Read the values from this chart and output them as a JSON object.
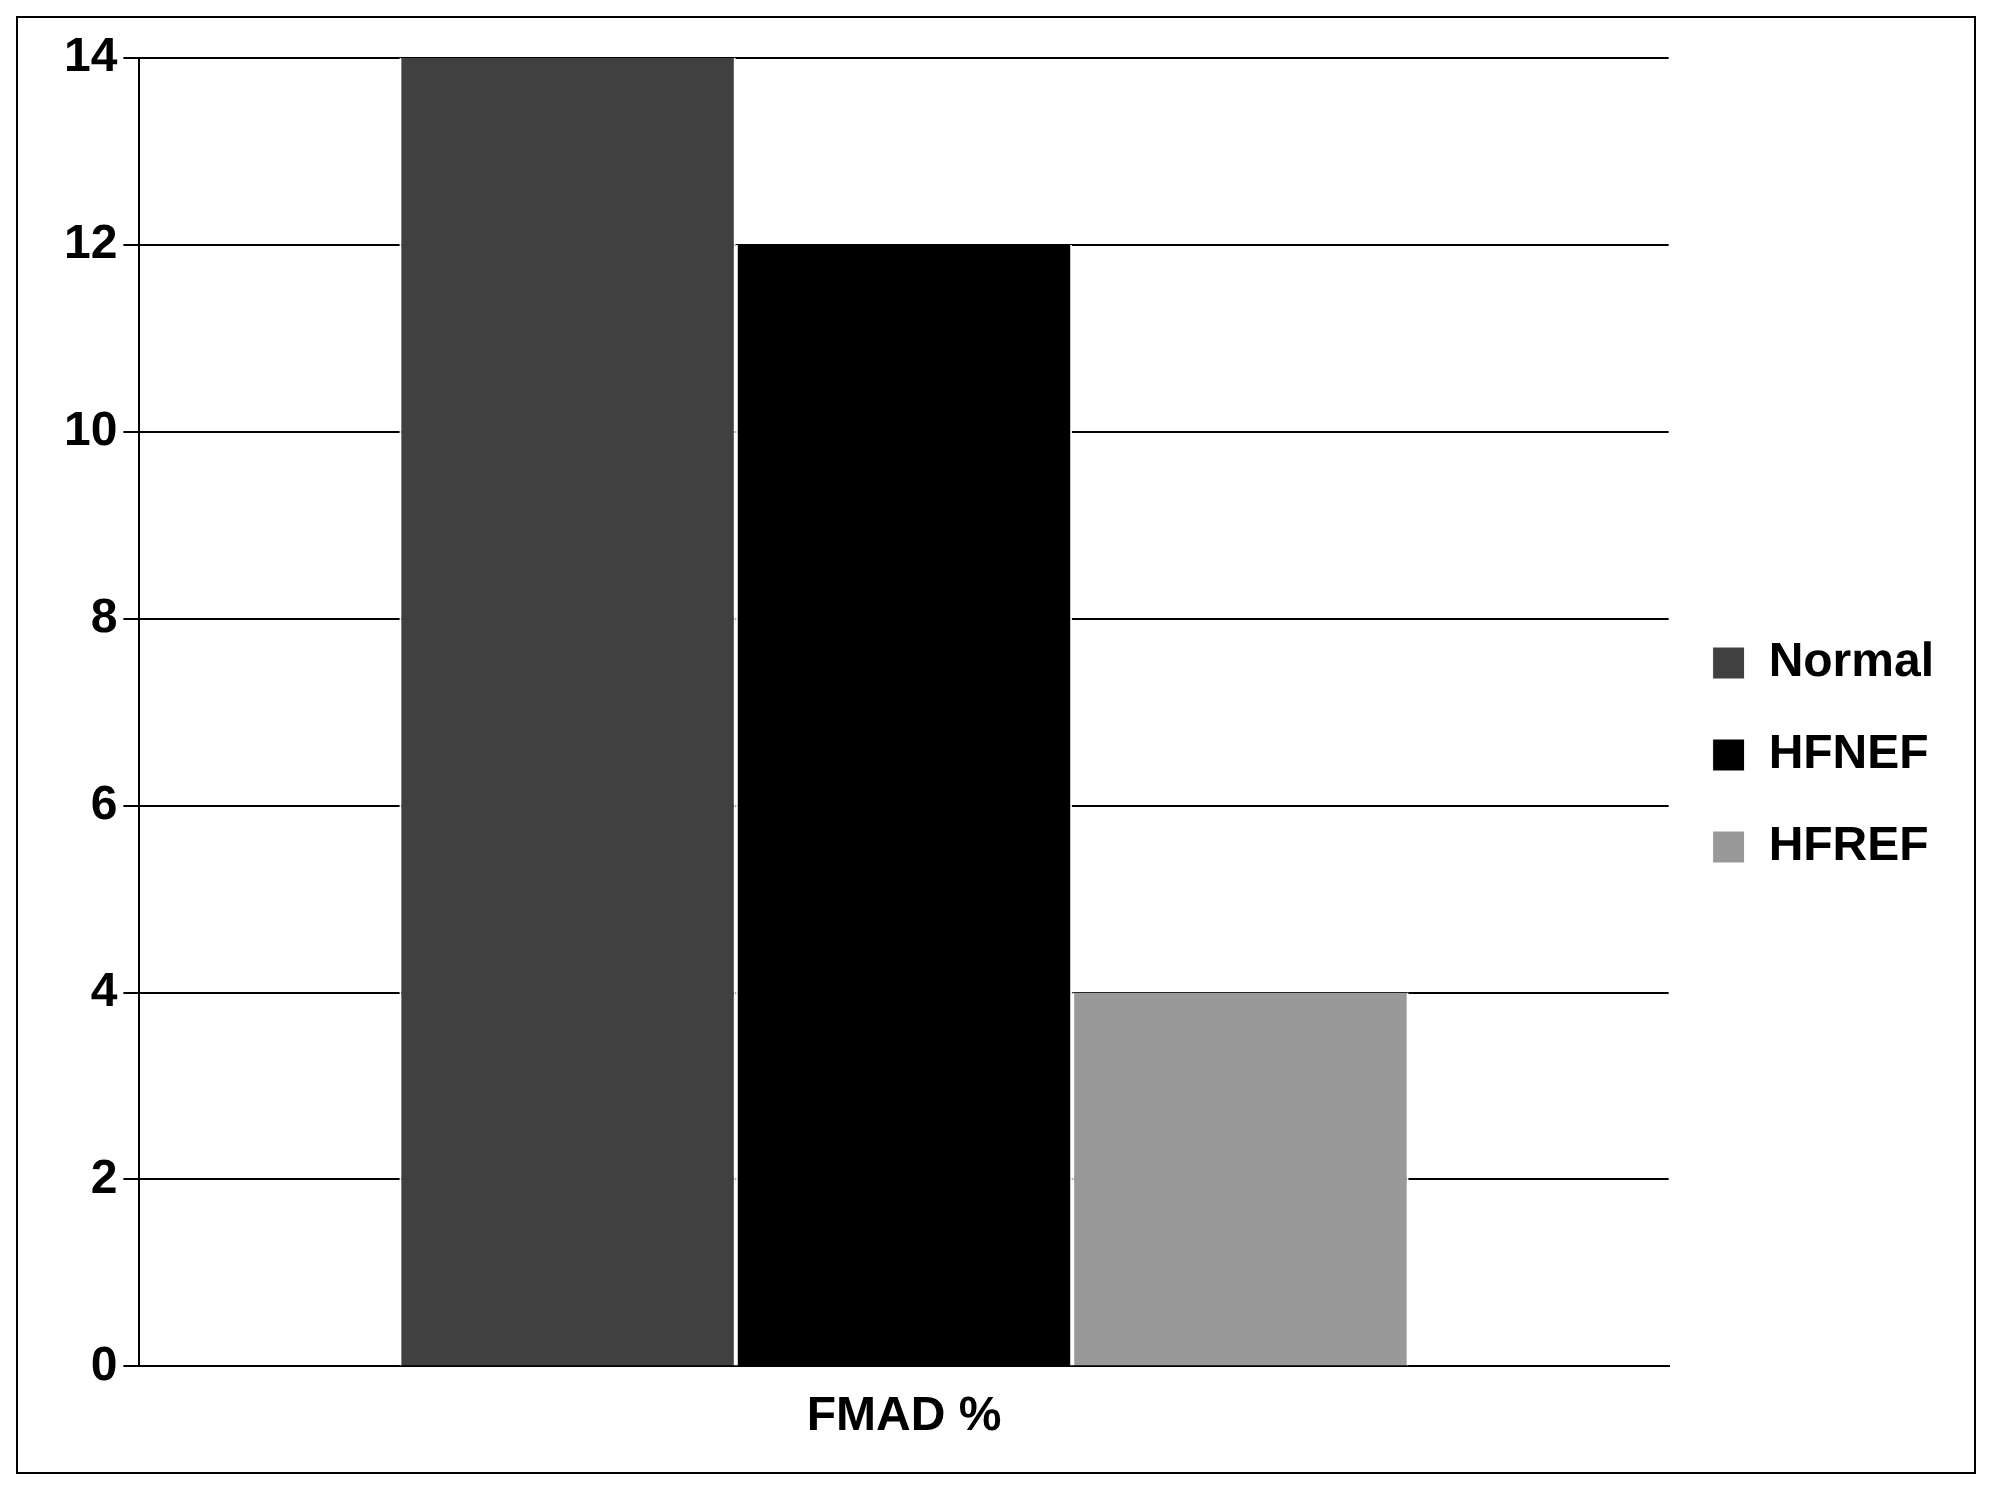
{
  "chart_data": {
    "type": "bar",
    "categories": [
      "FMAD %"
    ],
    "series": [
      {
        "name": "Normal",
        "color": "#404040",
        "values": [
          14
        ]
      },
      {
        "name": "HFNEF",
        "color": "#000000",
        "values": [
          12
        ]
      },
      {
        "name": "HFREF",
        "color": "#999999",
        "values": [
          4
        ]
      }
    ],
    "ylim": [
      0,
      14
    ],
    "yticks": [
      0,
      2,
      4,
      6,
      8,
      10,
      12,
      14
    ],
    "grid": "y",
    "legend": "right"
  }
}
